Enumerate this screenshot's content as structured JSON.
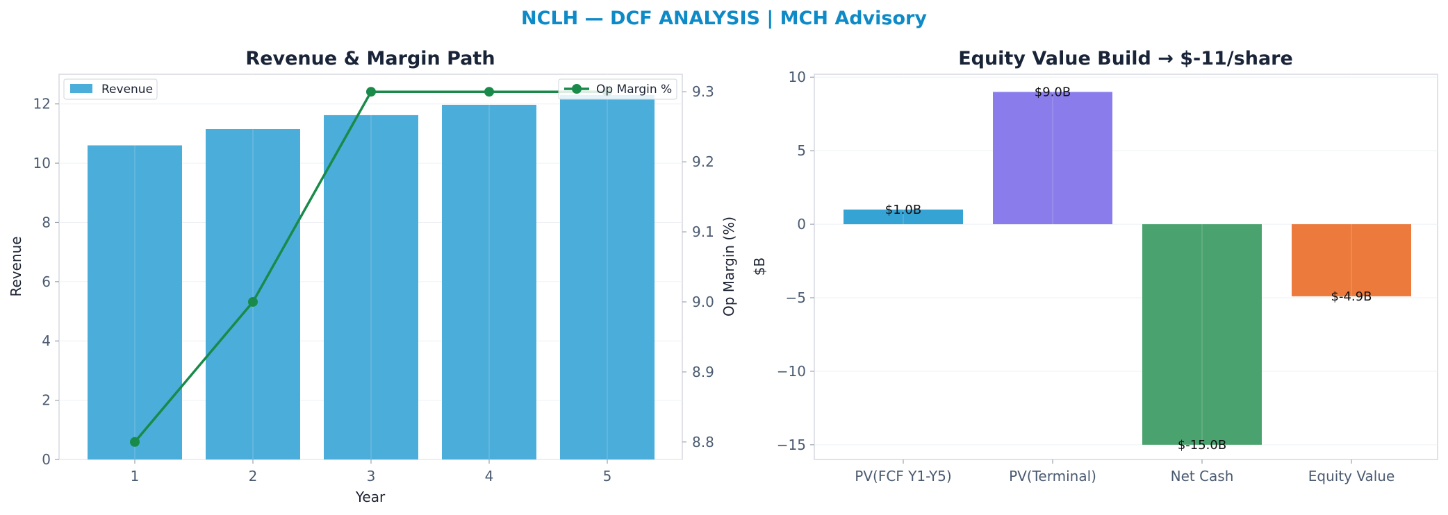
{
  "suptitle": "NCLH — DCF ANALYSIS | MCH Advisory",
  "colors": {
    "revenue_bar": "#4badd9",
    "op_margin_line": "#1a8a4a",
    "title_accent": "#0e8ac7"
  },
  "chart_data": [
    {
      "type": "bar",
      "title": "Revenue & Margin Path",
      "xlabel": "Year",
      "ylabel": "Revenue",
      "categories": [
        "1",
        "2",
        "3",
        "4",
        "5"
      ],
      "ylim": [
        0,
        13
      ],
      "yticks": [
        "0",
        "2",
        "4",
        "6",
        "8",
        "10",
        "12"
      ],
      "series": [
        {
          "name": "Revenue",
          "values": [
            10.6,
            11.15,
            11.62,
            11.97,
            12.3
          ]
        }
      ],
      "secondary_axis": {
        "type": "line",
        "ylabel": "Op Margin (%)",
        "ylim": [
          8.775,
          9.325
        ],
        "yticks": [
          "8.8",
          "8.9",
          "9.0",
          "9.1",
          "9.2",
          "9.3"
        ],
        "series": [
          {
            "name": "Op Margin %",
            "values": [
              8.8,
              9.0,
              9.3,
              9.3,
              9.3
            ]
          }
        ]
      },
      "legend_left": "upper-left",
      "legend_right": "upper-right",
      "grid": true
    },
    {
      "type": "bar",
      "title": "Equity Value Build → $-11/share",
      "xlabel": "",
      "ylabel": "$B",
      "categories": [
        "PV(FCF Y1-Y5)",
        "PV(Terminal)",
        "Net Cash",
        "Equity Value"
      ],
      "values": [
        1.0,
        9.0,
        -15.0,
        -4.9
      ],
      "data_labels": [
        "$1.0B",
        "$9.0B",
        "$-15.0B",
        "$-4.9B"
      ],
      "bar_colors": [
        "#36a3d5",
        "#8a7deb",
        "#4aa36e",
        "#ec7a3d"
      ],
      "ylim": [
        -16,
        10.2
      ],
      "yticks": [
        "−15",
        "−10",
        "−5",
        "0",
        "5",
        "10"
      ],
      "grid": true
    }
  ]
}
